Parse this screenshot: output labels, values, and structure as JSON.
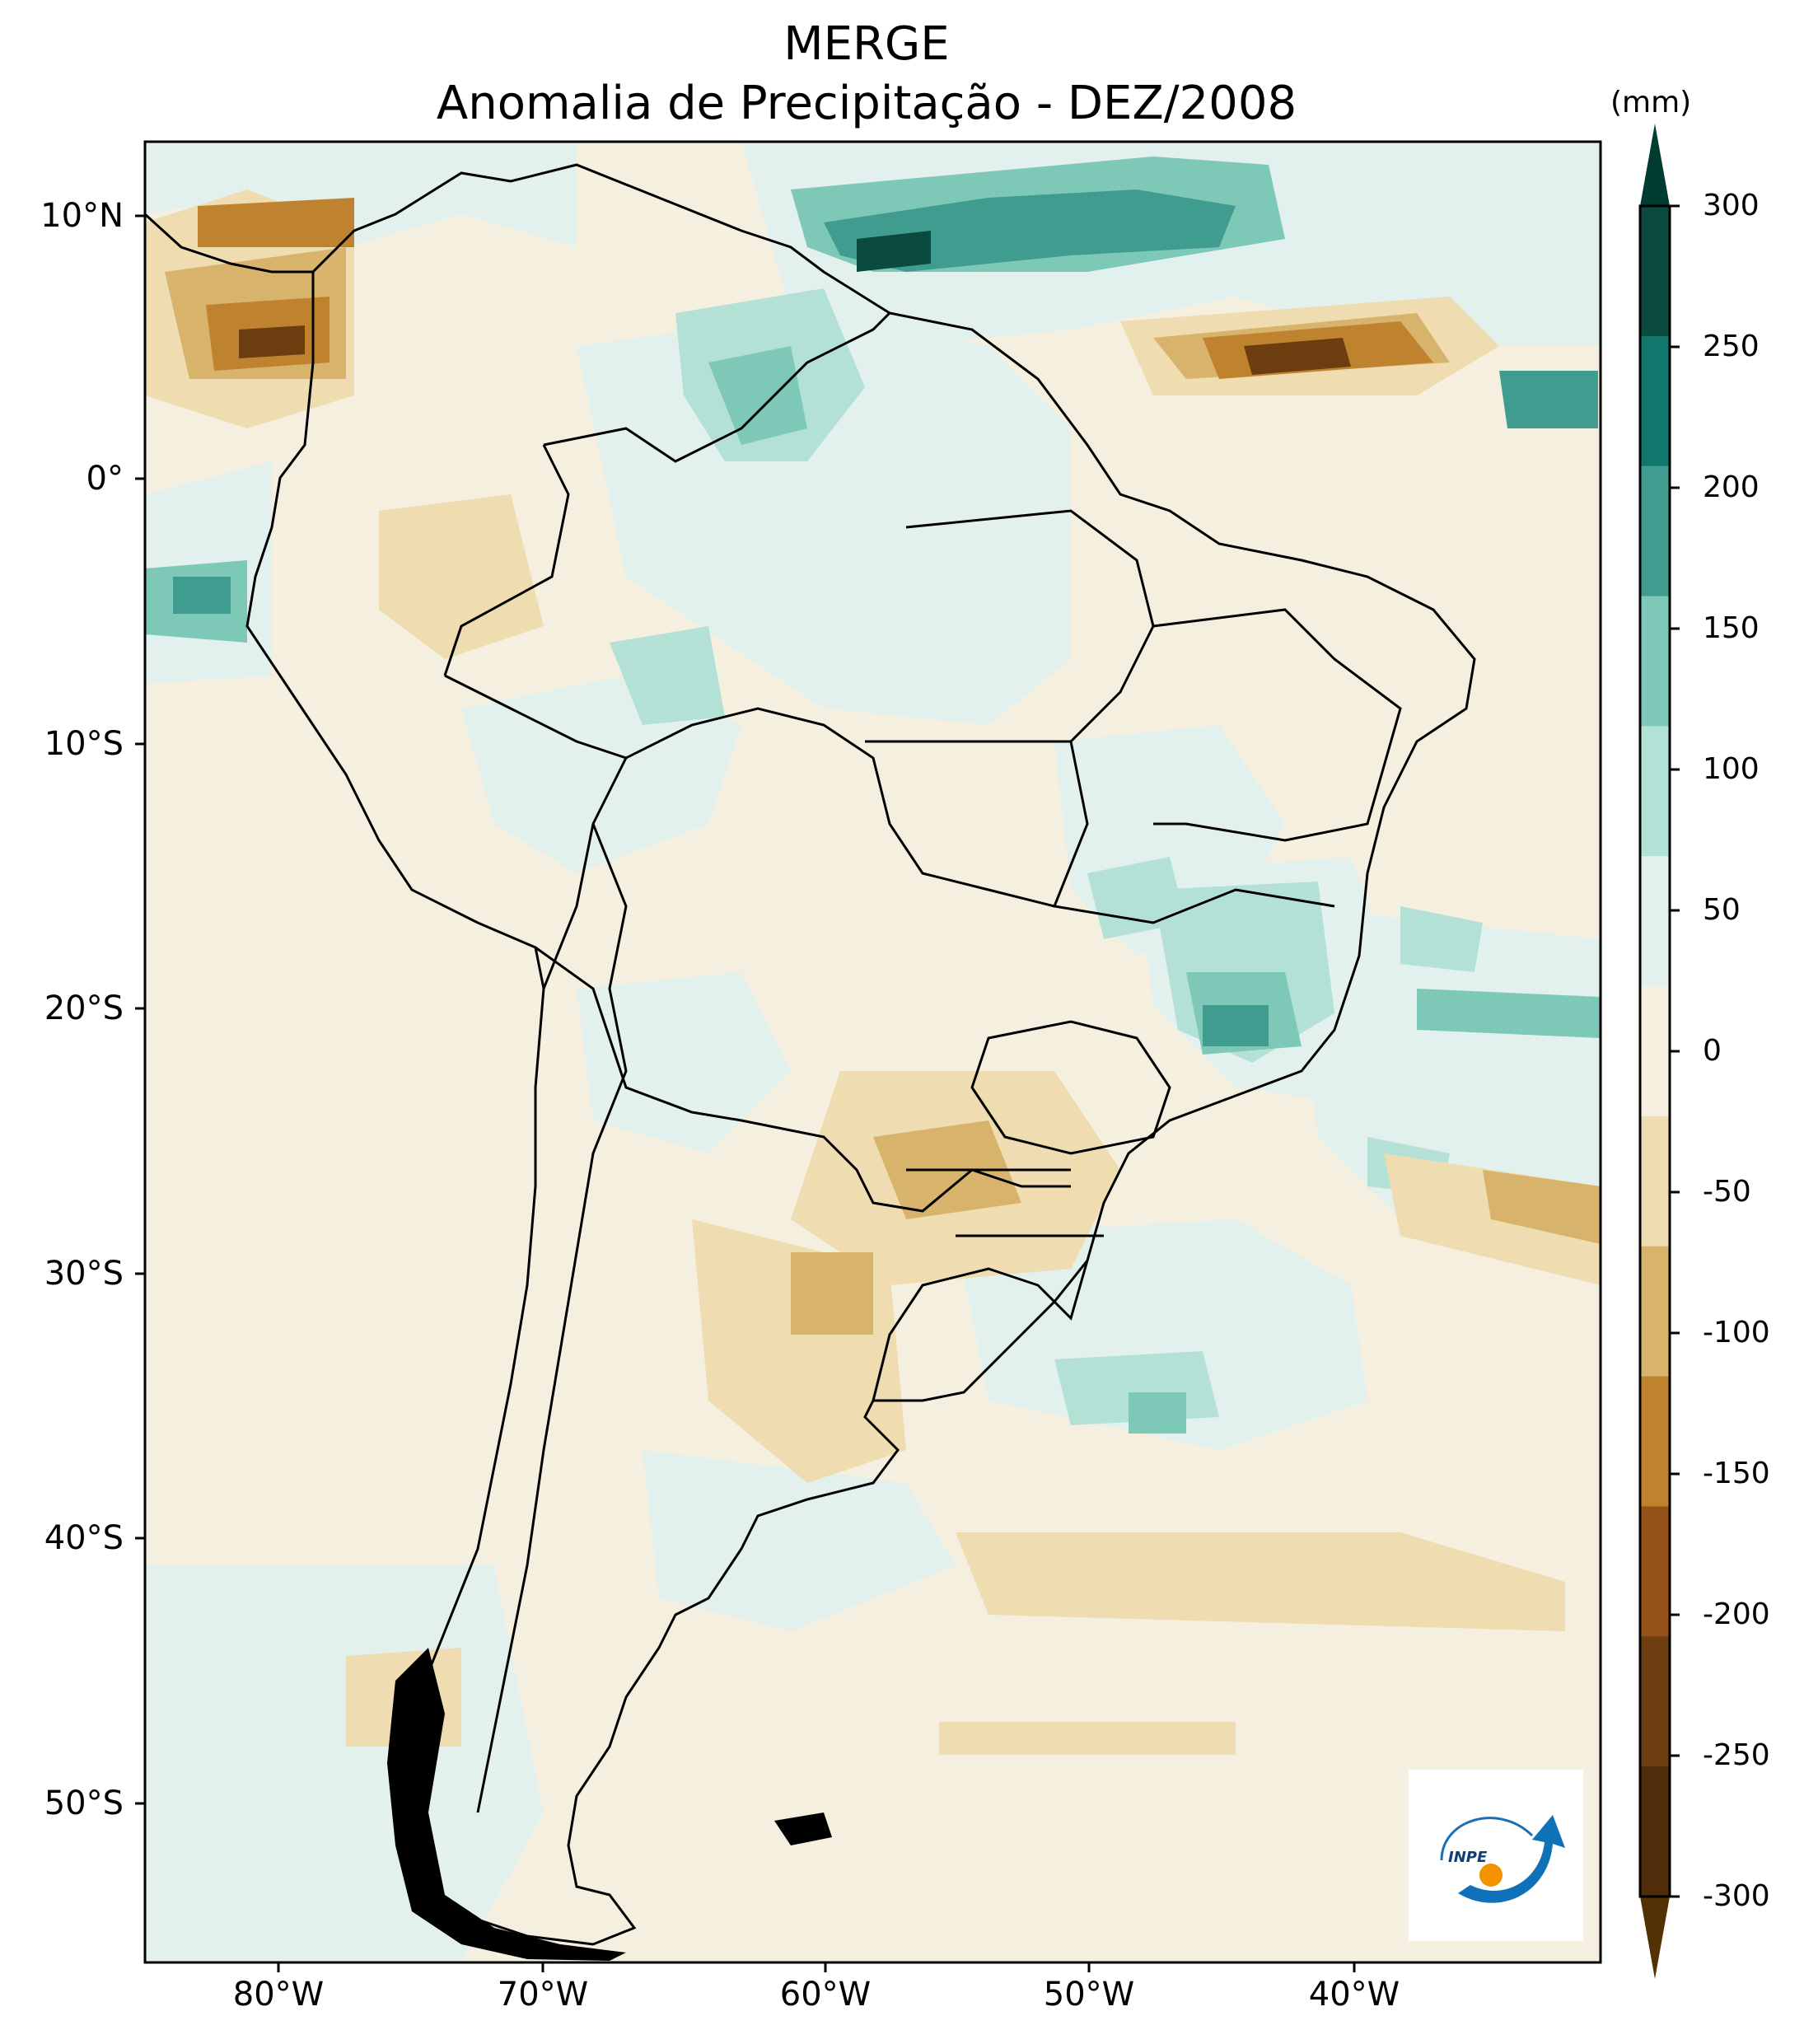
{
  "title": {
    "line1": "MERGE",
    "line2": "Anomalia de Precipitação - DEZ/2008"
  },
  "colorbar": {
    "unit": "(mm)",
    "ticks": [
      "300",
      "250",
      "200",
      "150",
      "100",
      "50",
      "0",
      "-50",
      "-100",
      "-150",
      "-200",
      "-250",
      "-300"
    ],
    "colors": [
      "#0b4a3e",
      "#11766b",
      "#3f9c8e",
      "#7ec8b8",
      "#b4e1d6",
      "#e2f1ed",
      "#f5efe0",
      "#efdcb0",
      "#d8b36b",
      "#bf822f",
      "#945218",
      "#6b3d0f",
      "#4f2d0a"
    ],
    "extend_colors": {
      "top": "#003c30",
      "bottom": "#543005"
    }
  },
  "axes": {
    "lat_ticks": [
      "10°N",
      "0°",
      "10°S",
      "20°S",
      "30°S",
      "40°S",
      "50°S"
    ],
    "lon_ticks": [
      "80°W",
      "70°W",
      "60°W",
      "50°W",
      "40°W"
    ]
  },
  "map": {
    "background": "#f5efe0",
    "anomaly_colors": {
      "wet_light": "#e2f1ed",
      "wet_mid": "#b4e1d6",
      "wet_strong": "#7ec8b8",
      "wet_heavy": "#3f9c8e",
      "wet_extreme": "#0b4a3e",
      "dry_light": "#efdcb0",
      "dry_mid": "#d8b36b",
      "dry_strong": "#bf822f",
      "dry_extreme": "#6b3d0f"
    }
  },
  "logo": {
    "text": "INPE"
  }
}
